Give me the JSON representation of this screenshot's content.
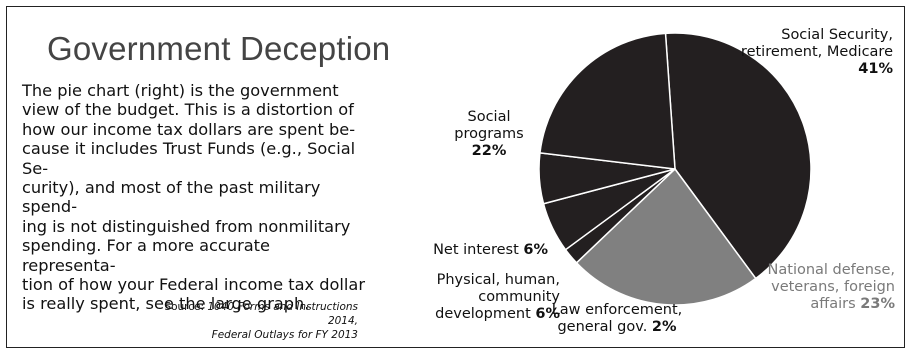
{
  "title": "Government Deception",
  "body": "The pie chart (right) is the government\nview of the budget. This is a distortion of\nhow our income tax dollars are spent be-\ncause it includes Trust Funds (e.g., Social Se-\ncurity), and most of the past military spend-\ning is not distinguished from nonmilitary\nspending. For a more accurate representa-\ntion of how your Federal income tax dollar\nis really spent, see the large graph.",
  "source": {
    "prefix": "Source:",
    "line1": "1040 Forms and Instructions 2014,",
    "line2": "Federal Outlays for FY 2013"
  },
  "colors": {
    "dark_slice": "#231f20",
    "grey_slice": "#808080",
    "grey_label": "#7a7a7a",
    "divider": "#ffffff"
  },
  "chart_data": {
    "type": "pie",
    "title": "",
    "slices": [
      {
        "label": "Social Security, retirement, Medicare",
        "value": 41,
        "value_label": "41%"
      },
      {
        "label": "National defense, veterans, foreign affairs",
        "value": 23,
        "value_label": "23%"
      },
      {
        "label": "Law enforcement, general gov.",
        "value": 2,
        "value_label": "2%"
      },
      {
        "label": "Physical, human, community development",
        "value": 6,
        "value_label": "6%"
      },
      {
        "label": "Net interest",
        "value": 6,
        "value_label": "6%"
      },
      {
        "label": "Social programs",
        "value": 22,
        "value_label": "22%"
      }
    ]
  }
}
